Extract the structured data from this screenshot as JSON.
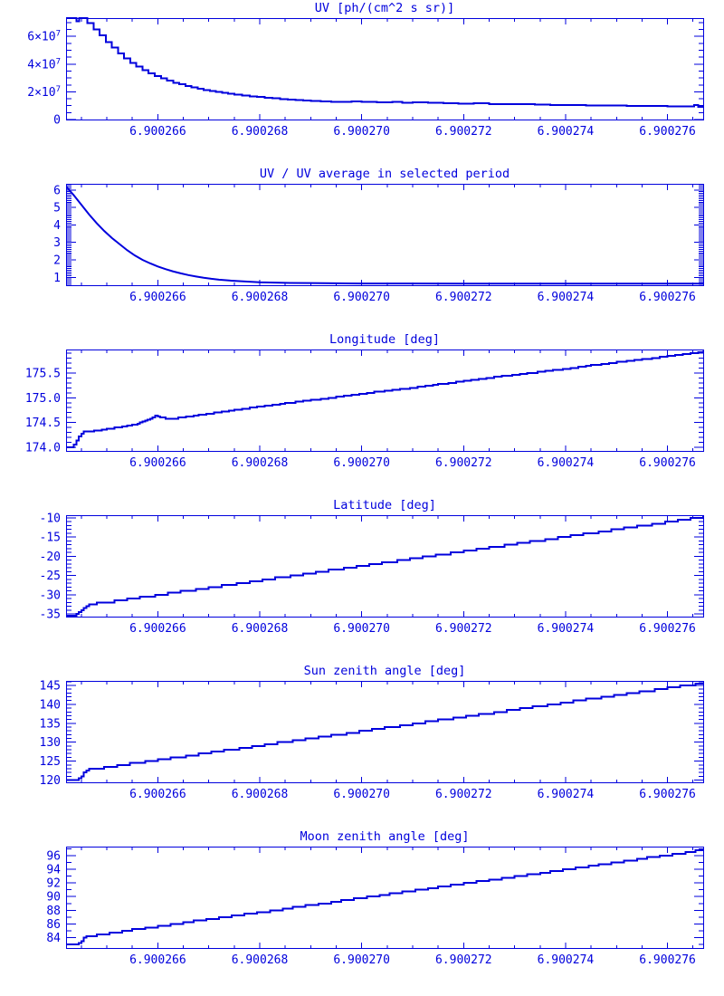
{
  "page": {
    "background": "#ffffff",
    "accent": "#0000dd",
    "description_labels": {
      "panel_count": "6"
    }
  },
  "xaxis": {
    "range": [
      4.2,
      16.7
    ],
    "minor_step": 0.5,
    "x_mapping": "t = 6.90026 + u*1e-6 (u stored in data points)",
    "ticks": [
      {
        "u": 6,
        "label": "6.900266"
      },
      {
        "u": 8,
        "label": "6.900268"
      },
      {
        "u": 10,
        "label": "6.900270"
      },
      {
        "u": 12,
        "label": "6.900272"
      },
      {
        "u": 14,
        "label": "6.900274"
      },
      {
        "u": 16,
        "label": "6.900276"
      }
    ]
  },
  "chart_data": [
    {
      "id": "uv",
      "type": "line",
      "render": "step",
      "title": "UV [ph/(cm^2 s sr)]",
      "y_unit": "1e7 ph/(cm^2 s sr)",
      "ylim": [
        0,
        7.32
      ],
      "yminor": 0.5,
      "yticks": [
        {
          "v": 0,
          "label": "0"
        },
        {
          "v": 2,
          "label": "2×10^7"
        },
        {
          "v": 4,
          "label": "4×10^7"
        },
        {
          "v": 6,
          "label": "6×10^7"
        }
      ],
      "points": [
        [
          4.2,
          7.32
        ],
        [
          4.4,
          7.1
        ],
        [
          4.46,
          7.32
        ],
        [
          4.62,
          6.95
        ],
        [
          4.74,
          6.5
        ],
        [
          4.86,
          6.08
        ],
        [
          4.98,
          5.6
        ],
        [
          5.1,
          5.18
        ],
        [
          5.22,
          4.78
        ],
        [
          5.34,
          4.42
        ],
        [
          5.46,
          4.1
        ],
        [
          5.58,
          3.82
        ],
        [
          5.7,
          3.56
        ],
        [
          5.82,
          3.34
        ],
        [
          5.94,
          3.14
        ],
        [
          6.06,
          2.96
        ],
        [
          6.18,
          2.8
        ],
        [
          6.3,
          2.66
        ],
        [
          6.42,
          2.54
        ],
        [
          6.54,
          2.42
        ],
        [
          6.66,
          2.32
        ],
        [
          6.78,
          2.22
        ],
        [
          6.9,
          2.14
        ],
        [
          7.02,
          2.06
        ],
        [
          7.14,
          1.99
        ],
        [
          7.26,
          1.92
        ],
        [
          7.38,
          1.86
        ],
        [
          7.5,
          1.8
        ],
        [
          7.65,
          1.74
        ],
        [
          7.8,
          1.68
        ],
        [
          7.95,
          1.62
        ],
        [
          8.1,
          1.57
        ],
        [
          8.25,
          1.52
        ],
        [
          8.4,
          1.47
        ],
        [
          8.55,
          1.43
        ],
        [
          8.7,
          1.39
        ],
        [
          8.85,
          1.36
        ],
        [
          9.0,
          1.33
        ],
        [
          9.2,
          1.3
        ],
        [
          9.4,
          1.28
        ],
        [
          9.6,
          1.26
        ],
        [
          9.8,
          1.3
        ],
        [
          10.0,
          1.26
        ],
        [
          10.3,
          1.24
        ],
        [
          10.6,
          1.28
        ],
        [
          10.8,
          1.22
        ],
        [
          11.0,
          1.24
        ],
        [
          11.3,
          1.2
        ],
        [
          11.6,
          1.18
        ],
        [
          11.9,
          1.16
        ],
        [
          12.2,
          1.18
        ],
        [
          12.5,
          1.12
        ],
        [
          12.8,
          1.1
        ],
        [
          13.1,
          1.12
        ],
        [
          13.4,
          1.08
        ],
        [
          13.7,
          1.06
        ],
        [
          14.0,
          1.04
        ],
        [
          14.4,
          1.02
        ],
        [
          14.8,
          1.0
        ],
        [
          15.2,
          0.98
        ],
        [
          15.6,
          0.97
        ],
        [
          16.0,
          0.96
        ],
        [
          16.4,
          0.96
        ],
        [
          16.52,
          1.05
        ],
        [
          16.6,
          0.92
        ],
        [
          16.7,
          1.0
        ]
      ]
    },
    {
      "id": "uv-ratio",
      "type": "line",
      "render": "smooth",
      "title": "UV / UV average in selected period",
      "ylim": [
        0.55,
        6.35
      ],
      "yminor": 0.1,
      "yticks": [
        {
          "v": 1,
          "label": "1"
        },
        {
          "v": 2,
          "label": "2"
        },
        {
          "v": 3,
          "label": "3"
        },
        {
          "v": 4,
          "label": "4"
        },
        {
          "v": 5,
          "label": "5"
        },
        {
          "v": 6,
          "label": "6"
        }
      ],
      "points": [
        [
          4.2,
          6.2
        ],
        [
          4.35,
          5.7
        ],
        [
          4.5,
          5.15
        ],
        [
          4.65,
          4.6
        ],
        [
          4.8,
          4.1
        ],
        [
          4.95,
          3.65
        ],
        [
          5.1,
          3.25
        ],
        [
          5.25,
          2.9
        ],
        [
          5.4,
          2.55
        ],
        [
          5.55,
          2.25
        ],
        [
          5.7,
          2.0
        ],
        [
          5.85,
          1.8
        ],
        [
          6.0,
          1.62
        ],
        [
          6.15,
          1.47
        ],
        [
          6.3,
          1.34
        ],
        [
          6.45,
          1.23
        ],
        [
          6.6,
          1.13
        ],
        [
          6.75,
          1.05
        ],
        [
          6.9,
          0.98
        ],
        [
          7.05,
          0.92
        ],
        [
          7.2,
          0.87
        ],
        [
          7.4,
          0.82
        ],
        [
          7.6,
          0.78
        ],
        [
          7.8,
          0.75
        ],
        [
          8.0,
          0.72
        ],
        [
          8.3,
          0.7
        ],
        [
          8.6,
          0.68
        ],
        [
          9.0,
          0.67
        ],
        [
          9.5,
          0.66
        ],
        [
          10.0,
          0.65
        ],
        [
          11.0,
          0.65
        ],
        [
          12.0,
          0.64
        ],
        [
          13.0,
          0.64
        ],
        [
          14.0,
          0.64
        ],
        [
          15.0,
          0.64
        ],
        [
          16.0,
          0.64
        ],
        [
          16.7,
          0.64
        ]
      ]
    },
    {
      "id": "longitude",
      "type": "line",
      "render": "quantized",
      "quant": 0.02,
      "title": "Longitude [deg]",
      "ylim": [
        173.93,
        175.97
      ],
      "yminor": 0.1,
      "yticks": [
        {
          "v": 174.0,
          "label": "174.0"
        },
        {
          "v": 174.5,
          "label": "174.5"
        },
        {
          "v": 175.0,
          "label": "175.0"
        },
        {
          "v": 175.5,
          "label": "175.5"
        }
      ],
      "points": [
        [
          4.2,
          174.0
        ],
        [
          4.32,
          174.01
        ],
        [
          4.42,
          174.18
        ],
        [
          4.52,
          174.31
        ],
        [
          4.8,
          174.34
        ],
        [
          5.2,
          174.4
        ],
        [
          5.6,
          174.47
        ],
        [
          5.8,
          174.56
        ],
        [
          5.95,
          174.63
        ],
        [
          6.05,
          174.6
        ],
        [
          6.25,
          174.57
        ],
        [
          6.6,
          174.62
        ],
        [
          7.0,
          174.68
        ],
        [
          7.5,
          174.75
        ],
        [
          8.0,
          174.82
        ],
        [
          8.5,
          174.89
        ],
        [
          9.0,
          174.95
        ],
        [
          9.5,
          175.01
        ],
        [
          10.0,
          175.08
        ],
        [
          10.5,
          175.14
        ],
        [
          11.0,
          175.2
        ],
        [
          11.5,
          175.27
        ],
        [
          12.0,
          175.33
        ],
        [
          12.5,
          175.4
        ],
        [
          13.0,
          175.46
        ],
        [
          13.5,
          175.52
        ],
        [
          14.0,
          175.58
        ],
        [
          14.5,
          175.65
        ],
        [
          15.0,
          175.71
        ],
        [
          15.5,
          175.77
        ],
        [
          16.0,
          175.83
        ],
        [
          16.7,
          175.93
        ]
      ]
    },
    {
      "id": "latitude",
      "type": "line",
      "render": "quantized",
      "quant": 0.5,
      "title": "Latitude [deg]",
      "ylim": [
        -35.7,
        -9.3
      ],
      "yminor": 1,
      "yticks": [
        {
          "v": -35,
          "label": "-35"
        },
        {
          "v": -30,
          "label": "-30"
        },
        {
          "v": -25,
          "label": "-25"
        },
        {
          "v": -20,
          "label": "-20"
        },
        {
          "v": -15,
          "label": "-15"
        },
        {
          "v": -10,
          "label": "-10"
        }
      ],
      "points": [
        [
          4.2,
          -35.4
        ],
        [
          4.38,
          -35.35
        ],
        [
          4.5,
          -34.2
        ],
        [
          4.62,
          -32.5
        ],
        [
          4.8,
          -32.25
        ],
        [
          5.0,
          -31.95
        ],
        [
          6.0,
          -30.1
        ],
        [
          7.0,
          -28.2
        ],
        [
          8.0,
          -26.3
        ],
        [
          9.0,
          -24.4
        ],
        [
          10.0,
          -22.5
        ],
        [
          11.0,
          -20.6
        ],
        [
          12.0,
          -18.7
        ],
        [
          13.0,
          -16.8
        ],
        [
          14.0,
          -14.9
        ],
        [
          15.0,
          -13.0
        ],
        [
          16.0,
          -11.1
        ],
        [
          16.7,
          -9.75
        ]
      ]
    },
    {
      "id": "sun-zenith",
      "type": "line",
      "render": "quantized",
      "quant": 0.5,
      "title": "Sun zenith angle [deg]",
      "ylim": [
        119.4,
        146.2
      ],
      "yminor": 1,
      "yticks": [
        {
          "v": 120,
          "label": "120"
        },
        {
          "v": 125,
          "label": "125"
        },
        {
          "v": 130,
          "label": "130"
        },
        {
          "v": 135,
          "label": "135"
        },
        {
          "v": 140,
          "label": "140"
        },
        {
          "v": 145,
          "label": "145"
        }
      ],
      "points": [
        [
          4.2,
          119.8
        ],
        [
          4.38,
          119.85
        ],
        [
          4.5,
          121.2
        ],
        [
          4.62,
          122.7
        ],
        [
          4.8,
          123.0
        ],
        [
          5.0,
          123.4
        ],
        [
          6.0,
          125.3
        ],
        [
          7.0,
          127.2
        ],
        [
          8.0,
          129.1
        ],
        [
          9.0,
          131.0
        ],
        [
          10.0,
          132.9
        ],
        [
          11.0,
          134.8
        ],
        [
          12.0,
          136.7
        ],
        [
          13.0,
          138.6
        ],
        [
          14.0,
          140.5
        ],
        [
          15.0,
          142.4
        ],
        [
          16.0,
          144.3
        ],
        [
          16.7,
          145.6
        ]
      ]
    },
    {
      "id": "moon-zenith",
      "type": "line",
      "render": "quantized",
      "quant": 0.25,
      "title": "Moon zenith angle [deg]",
      "ylim": [
        82.5,
        97.3
      ],
      "yminor": 1,
      "yticks": [
        {
          "v": 84,
          "label": "84"
        },
        {
          "v": 86,
          "label": "86"
        },
        {
          "v": 88,
          "label": "88"
        },
        {
          "v": 90,
          "label": "90"
        },
        {
          "v": 92,
          "label": "92"
        },
        {
          "v": 94,
          "label": "94"
        },
        {
          "v": 96,
          "label": "96"
        }
      ],
      "points": [
        [
          4.2,
          82.9
        ],
        [
          4.38,
          82.95
        ],
        [
          4.5,
          83.6
        ],
        [
          4.62,
          84.3
        ],
        [
          4.8,
          84.4
        ],
        [
          5.0,
          84.6
        ],
        [
          6.0,
          85.65
        ],
        [
          7.0,
          86.7
        ],
        [
          8.0,
          87.7
        ],
        [
          9.0,
          88.75
        ],
        [
          10.0,
          89.8
        ],
        [
          11.0,
          90.85
        ],
        [
          12.0,
          91.9
        ],
        [
          13.0,
          92.9
        ],
        [
          14.0,
          93.95
        ],
        [
          15.0,
          95.0
        ],
        [
          16.0,
          96.05
        ],
        [
          16.7,
          96.8
        ]
      ]
    }
  ]
}
